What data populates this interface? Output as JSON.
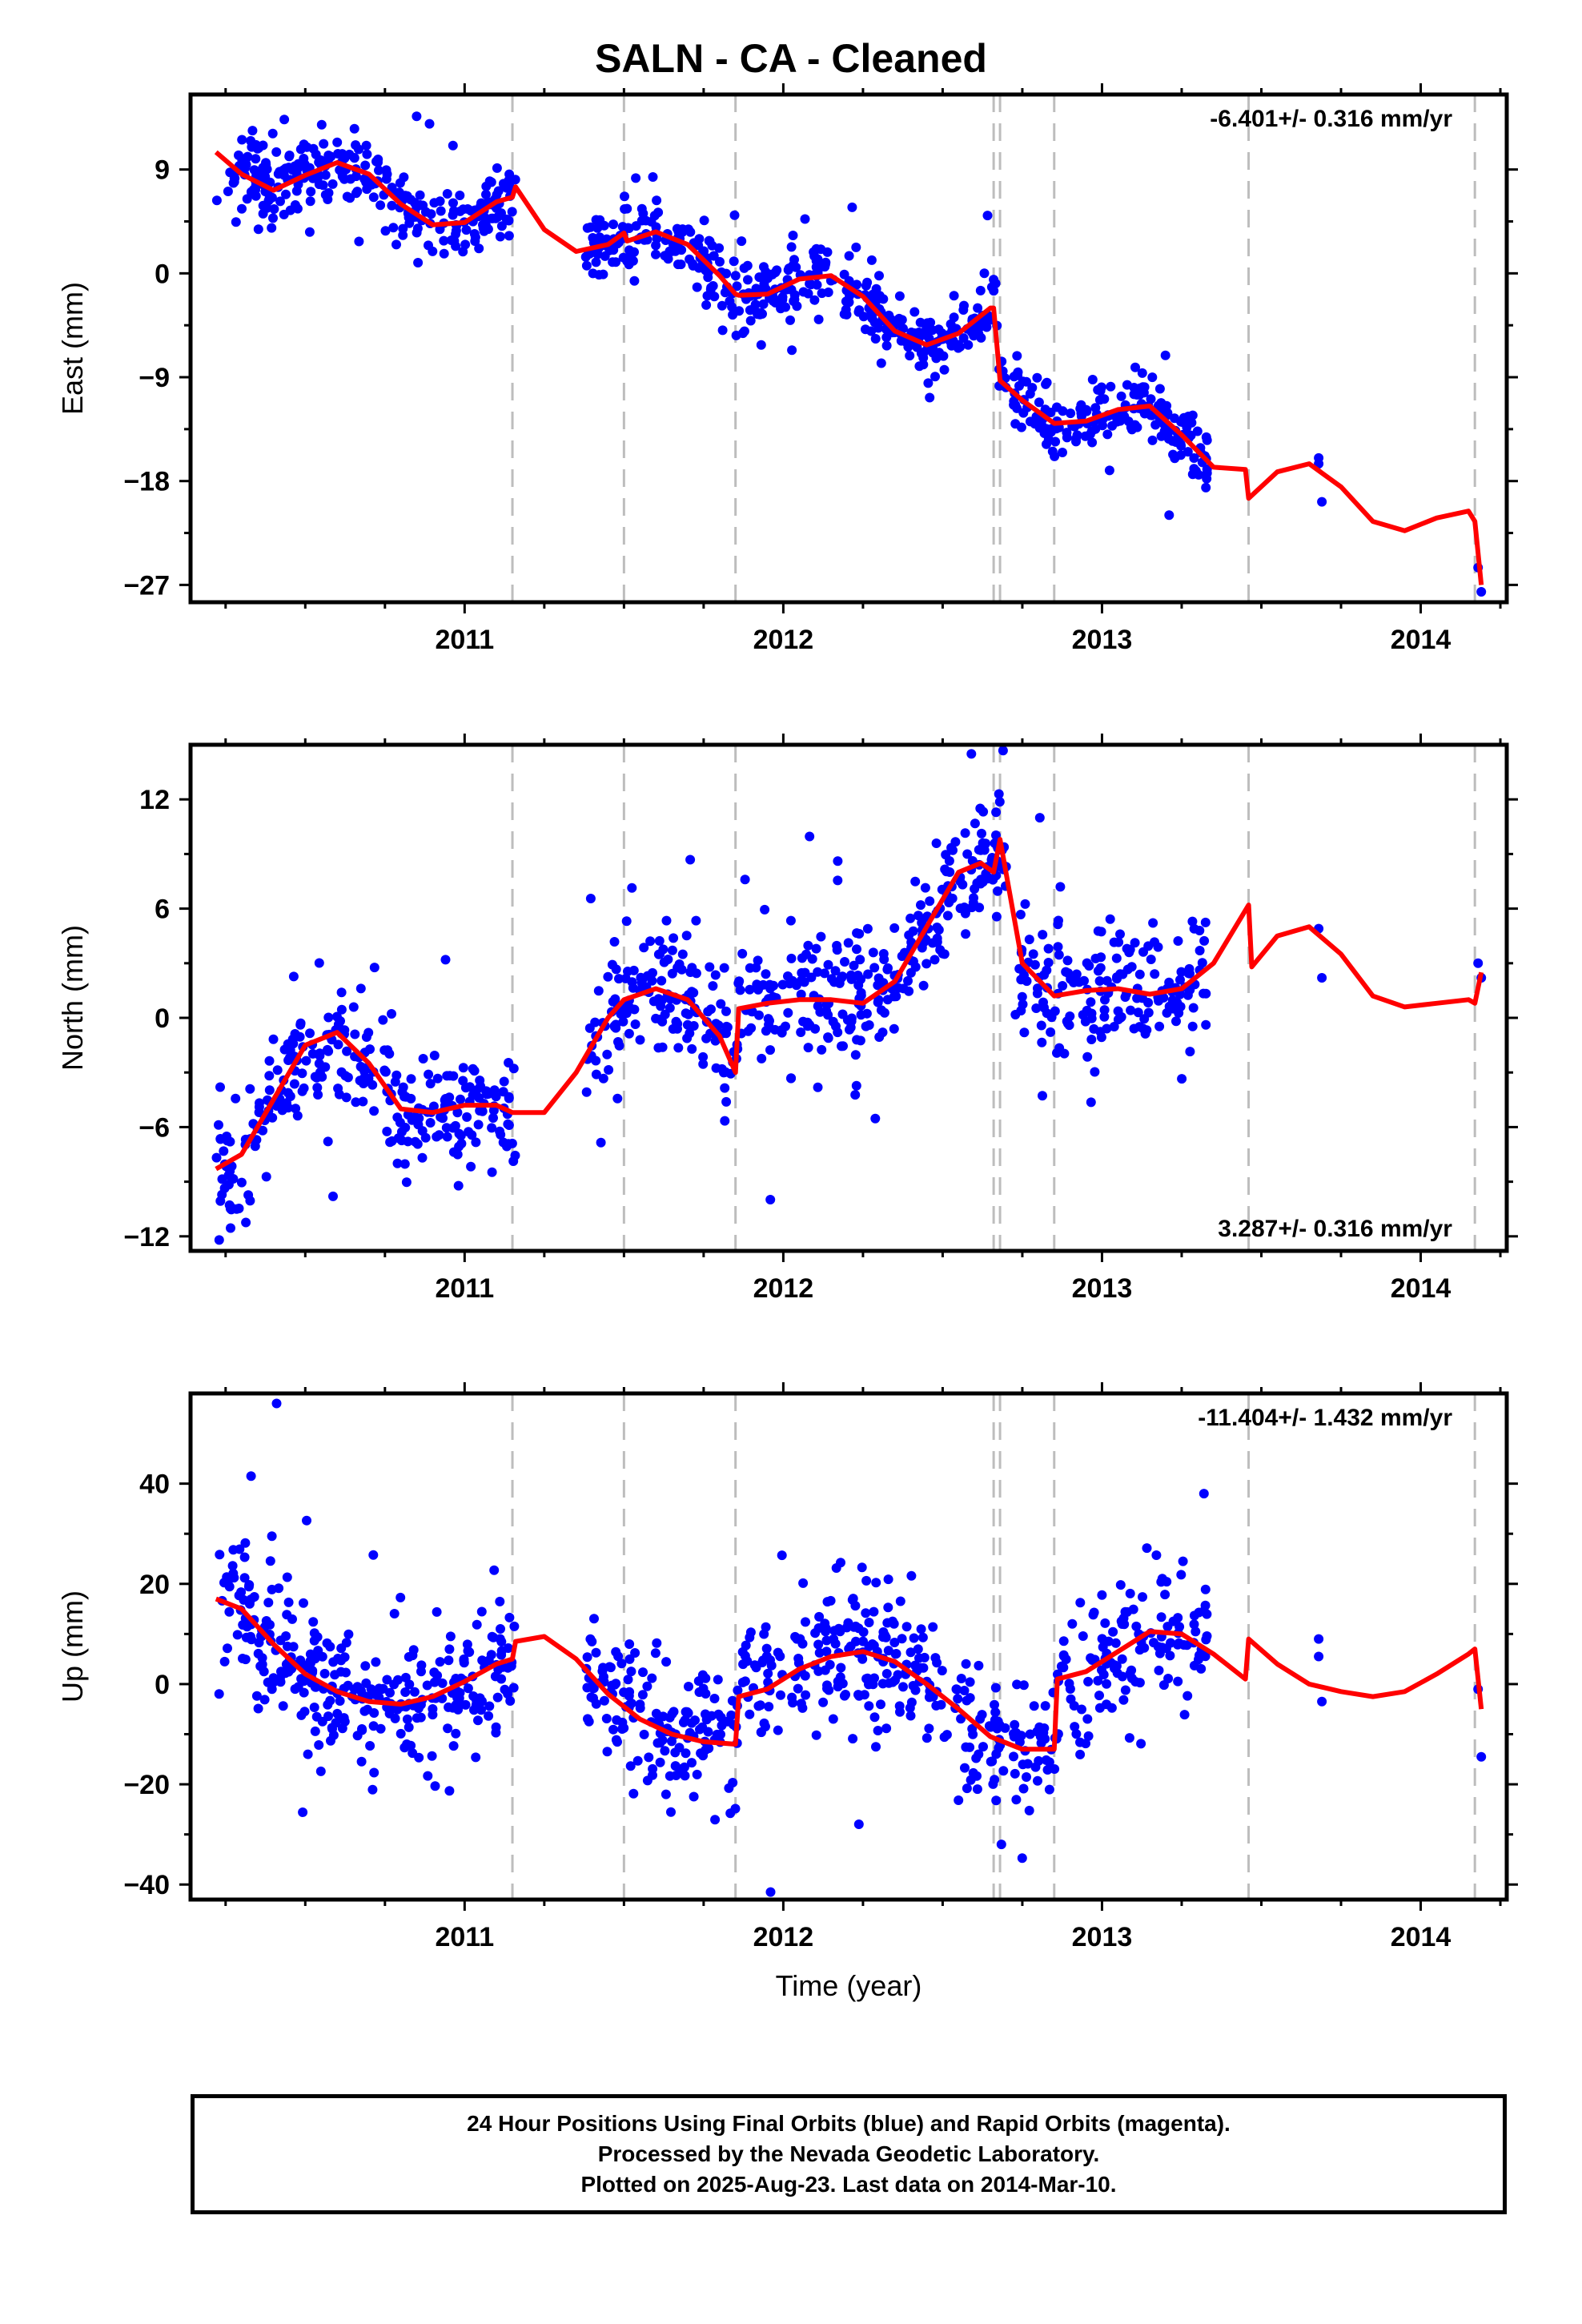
{
  "title": "SALN  - CA - Cleaned",
  "footer": {
    "line1": "24 Hour Positions Using Final Orbits (blue) and Rapid Orbits (magenta).",
    "line2": "Processed by the Nevada Geodetic Laboratory.",
    "line3": "Plotted on 2025-Aug-23. Last data on 2014-Mar-10."
  },
  "colors": {
    "data_points": "#0000ff",
    "model_fit": "#ff0000",
    "step_lines": "#bdbdbd",
    "frame": "#000000"
  },
  "chart_data": [
    {
      "type": "scatter",
      "ylabel": "East (mm)",
      "xlabel": "",
      "xlim": [
        2010.14,
        2014.27
      ],
      "ylim": [
        -28.5,
        15.5
      ],
      "yticks": [
        -27,
        -18,
        -9,
        0,
        9
      ],
      "ytick_labels": [
        "−27",
        "−18",
        "−9",
        "0",
        "9"
      ],
      "xticks": [
        2011,
        2012,
        2013,
        2014
      ],
      "rate_text": "-6.401+/- 0.316 mm/yr",
      "rate_position": "top-right",
      "step_epochs": [
        2011.15,
        2011.5,
        2011.85,
        2012.66,
        2012.68,
        2012.85,
        2013.46,
        2014.17
      ],
      "model_fit": {
        "name": "model",
        "x": [
          2010.22,
          2010.3,
          2010.4,
          2010.5,
          2010.6,
          2010.7,
          2010.8,
          2010.9,
          2011.0,
          2011.1,
          2011.15,
          2011.16,
          2011.25,
          2011.35,
          2011.45,
          2011.5,
          2011.51,
          2011.6,
          2011.7,
          2011.8,
          2011.85,
          2011.86,
          2011.95,
          2012.05,
          2012.15,
          2012.25,
          2012.35,
          2012.45,
          2012.55,
          2012.65,
          2012.66,
          2012.68,
          2012.75,
          2012.85,
          2012.95,
          2013.05,
          2013.15,
          2013.25,
          2013.35,
          2013.45,
          2013.46,
          2013.55,
          2013.65,
          2013.75,
          2013.85,
          2013.95,
          2014.05,
          2014.15,
          2014.17,
          2014.19
        ],
        "y": [
          10.5,
          8.6,
          7.2,
          8.5,
          9.6,
          8.6,
          6.0,
          4.2,
          4.4,
          6.2,
          6.6,
          7.5,
          3.8,
          1.9,
          2.5,
          3.5,
          2.8,
          3.6,
          2.5,
          -0.2,
          -1.8,
          -1.9,
          -1.8,
          -0.5,
          -0.2,
          -2.0,
          -5.0,
          -6.2,
          -5.2,
          -3.0,
          -3.0,
          -9.3,
          -11.0,
          -13.0,
          -12.8,
          -11.8,
          -11.5,
          -14.0,
          -16.8,
          -17.0,
          -19.5,
          -17.2,
          -16.5,
          -18.5,
          -21.5,
          -22.3,
          -21.2,
          -20.6,
          -21.5,
          -27.0
        ]
      },
      "points": {
        "name": "24 Hour Positions",
        "seed": 11,
        "count": 980,
        "x_range": [
          2010.22,
          2013.33
        ],
        "noise_mm": 1.6,
        "outlier_rate": 0.02,
        "outlier_mm": 3.5,
        "gaps": [
          [
            2011.16,
            2011.38
          ],
          [
            2012.7,
            2012.72
          ]
        ],
        "extra": [
          [
            2013.68,
            -16.5
          ],
          [
            2013.68,
            -16.0
          ],
          [
            2013.69,
            -19.8
          ],
          [
            2014.18,
            -25.5
          ],
          [
            2014.19,
            -27.6
          ]
        ]
      }
    },
    {
      "type": "scatter",
      "ylabel": "North (mm)",
      "xlabel": "",
      "xlim": [
        2010.14,
        2014.27
      ],
      "ylim": [
        -12.8,
        15.0
      ],
      "yticks": [
        -12,
        -6,
        0,
        6,
        12
      ],
      "ytick_labels": [
        "−12",
        "−6",
        "0",
        "6",
        "12"
      ],
      "xticks": [
        2011,
        2012,
        2013,
        2014
      ],
      "rate_text": "3.287+/- 0.316 mm/yr",
      "rate_position": "bottom-right",
      "step_epochs": [
        2011.15,
        2011.5,
        2011.85,
        2012.66,
        2012.68,
        2012.85,
        2013.46,
        2014.17
      ],
      "model_fit": {
        "name": "model",
        "x": [
          2010.22,
          2010.3,
          2010.4,
          2010.5,
          2010.6,
          2010.7,
          2010.8,
          2010.9,
          2011.0,
          2011.1,
          2011.15,
          2011.25,
          2011.35,
          2011.45,
          2011.5,
          2011.55,
          2011.6,
          2011.7,
          2011.8,
          2011.85,
          2011.86,
          2011.95,
          2012.05,
          2012.15,
          2012.25,
          2012.35,
          2012.45,
          2012.55,
          2012.62,
          2012.66,
          2012.68,
          2012.75,
          2012.85,
          2012.95,
          2013.05,
          2013.15,
          2013.25,
          2013.35,
          2013.46,
          2013.47,
          2013.55,
          2013.65,
          2013.75,
          2013.85,
          2013.95,
          2014.05,
          2014.15,
          2014.17,
          2014.19
        ],
        "y": [
          -8.3,
          -7.5,
          -4.5,
          -1.5,
          -0.8,
          -2.5,
          -5.0,
          -5.2,
          -4.8,
          -4.8,
          -5.2,
          -5.2,
          -3.0,
          0.0,
          1.0,
          1.3,
          1.6,
          1.0,
          -1.0,
          -3.0,
          0.5,
          0.8,
          1.0,
          1.0,
          0.8,
          2.0,
          5.0,
          8.0,
          8.5,
          8.0,
          9.8,
          3.0,
          1.2,
          1.5,
          1.6,
          1.3,
          1.6,
          3.0,
          6.2,
          2.8,
          4.5,
          5.0,
          3.5,
          1.2,
          0.6,
          0.8,
          1.0,
          0.8,
          2.5
        ]
      },
      "points": {
        "name": "24 Hour Positions",
        "seed": 23,
        "count": 980,
        "x_range": [
          2010.22,
          2013.33
        ],
        "noise_mm": 1.7,
        "outlier_rate": 0.02,
        "outlier_mm": 4.0,
        "gaps": [
          [
            2011.16,
            2011.38
          ],
          [
            2012.7,
            2012.72
          ]
        ],
        "extra": [
          [
            2013.68,
            4.9
          ],
          [
            2013.69,
            2.2
          ],
          [
            2014.18,
            3.0
          ],
          [
            2014.19,
            2.2
          ],
          [
            2010.23,
            -12.2
          ],
          [
            2012.59,
            14.5
          ],
          [
            2011.88,
            7.6
          ]
        ]
      }
    },
    {
      "type": "scatter",
      "ylabel": "Up (mm)",
      "xlabel": "Time (year)",
      "xlim": [
        2010.14,
        2014.27
      ],
      "ylim": [
        -43.0,
        58.0
      ],
      "yticks": [
        -40,
        -20,
        0,
        20,
        40
      ],
      "ytick_labels": [
        "−40",
        "−20",
        "0",
        "20",
        "40"
      ],
      "xticks": [
        2011,
        2012,
        2013,
        2014
      ],
      "rate_text": "-11.404+/- 1.432 mm/yr",
      "rate_position": "top-right",
      "step_epochs": [
        2011.15,
        2011.5,
        2011.85,
        2012.66,
        2012.68,
        2012.85,
        2013.46,
        2014.17
      ],
      "model_fit": {
        "name": "model",
        "x": [
          2010.22,
          2010.3,
          2010.4,
          2010.5,
          2010.6,
          2010.7,
          2010.8,
          2010.9,
          2011.0,
          2011.1,
          2011.15,
          2011.16,
          2011.25,
          2011.35,
          2011.45,
          2011.55,
          2011.65,
          2011.75,
          2011.85,
          2011.86,
          2011.95,
          2012.05,
          2012.15,
          2012.25,
          2012.35,
          2012.45,
          2012.55,
          2012.65,
          2012.75,
          2012.85,
          2012.86,
          2012.95,
          2013.05,
          2013.15,
          2013.25,
          2013.35,
          2013.45,
          2013.46,
          2013.55,
          2013.65,
          2013.75,
          2013.85,
          2013.95,
          2014.05,
          2014.15,
          2014.17,
          2014.19
        ],
        "y": [
          17.0,
          15.0,
          8.0,
          2.0,
          -1.5,
          -3.5,
          -4.0,
          -2.5,
          0.5,
          4.0,
          5.0,
          8.5,
          9.5,
          5.0,
          -2.0,
          -7.0,
          -10.0,
          -11.5,
          -12.0,
          -2.5,
          -1.0,
          3.0,
          5.5,
          6.5,
          4.5,
          0.0,
          -5.0,
          -10.5,
          -13.0,
          -13.0,
          1.0,
          2.5,
          6.5,
          10.5,
          10.0,
          6.0,
          1.0,
          9.0,
          4.0,
          0.0,
          -1.5,
          -2.5,
          -1.5,
          2.0,
          6.0,
          7.0,
          -5.0
        ]
      },
      "points": {
        "name": "24 Hour Positions",
        "seed": 37,
        "count": 980,
        "x_range": [
          2010.22,
          2013.33
        ],
        "noise_mm": 7.0,
        "outlier_rate": 0.02,
        "outlier_mm": 12.0,
        "gaps": [
          [
            2011.16,
            2011.38
          ],
          [
            2012.7,
            2012.72
          ]
        ],
        "extra": [
          [
            2013.68,
            9.0
          ],
          [
            2013.68,
            5.5
          ],
          [
            2013.69,
            -3.5
          ],
          [
            2014.18,
            -1.0
          ],
          [
            2014.19,
            -14.5
          ],
          [
            2010.41,
            56.0
          ],
          [
            2011.96,
            -41.5
          ],
          [
            2010.33,
            41.5
          ],
          [
            2013.32,
            38.0
          ]
        ]
      }
    }
  ]
}
